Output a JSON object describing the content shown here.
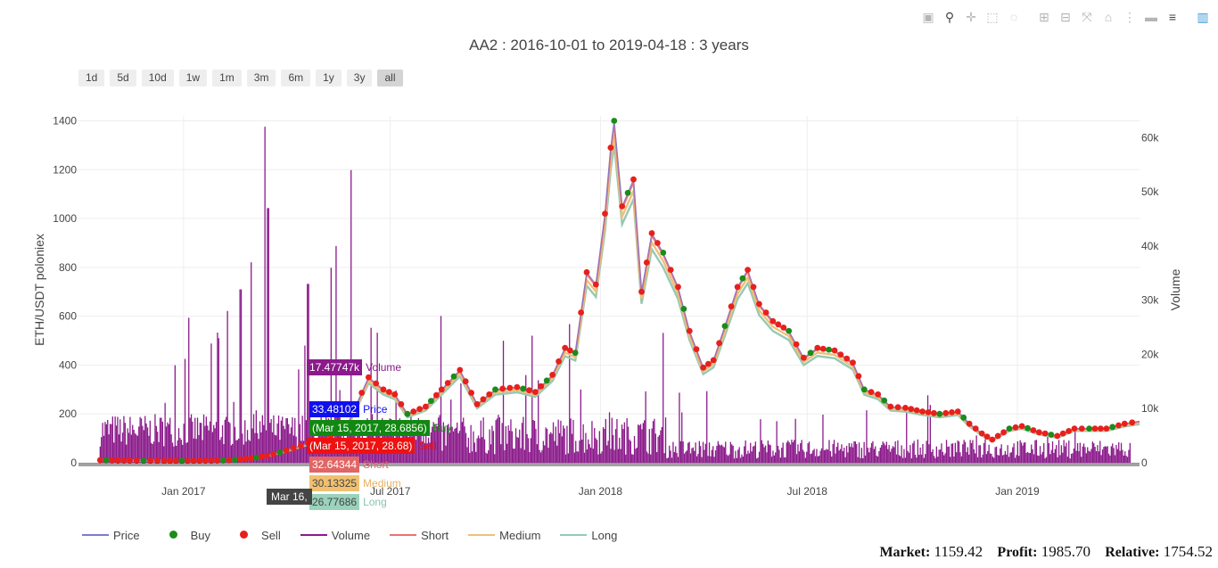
{
  "modebar": {
    "icons": [
      "camera-icon",
      "zoom-icon",
      "pan-icon",
      "box-select-icon",
      "lasso-icon",
      "zoom-in-icon",
      "zoom-out-icon",
      "autoscale-icon",
      "reset-axes-icon",
      "spike-lines-icon",
      "hover-closest-icon",
      "hover-compare-icon",
      "plotly-logo-icon"
    ]
  },
  "range_selector": [
    "1d",
    "5d",
    "10d",
    "1w",
    "1m",
    "3m",
    "6m",
    "1y",
    "3y",
    "all"
  ],
  "range_selector_active": "all",
  "legend": [
    {
      "name": "Price",
      "symbol": "line",
      "color": "#7b7bd1"
    },
    {
      "name": "Buy",
      "symbol": "dot",
      "color": "#1a8c1a"
    },
    {
      "name": "Sell",
      "symbol": "dot",
      "color": "#e8201c"
    },
    {
      "name": "Volume",
      "symbol": "line",
      "color": "#8b1a8b"
    },
    {
      "name": "Short",
      "symbol": "line",
      "color": "#e87474"
    },
    {
      "name": "Medium",
      "symbol": "line",
      "color": "#eec07a"
    },
    {
      "name": "Long",
      "symbol": "line",
      "color": "#96c9b3"
    }
  ],
  "stats": {
    "market_label": "Market:",
    "market_value": "1159.42",
    "profit_label": "Profit:",
    "profit_value": "1985.70",
    "relative_label": "Relative:",
    "relative_value": "1754.52"
  },
  "tooltips": {
    "volume": {
      "value": "17.47747k",
      "name": "Volume",
      "color": "#8b1a8b"
    },
    "price": {
      "value": "33.48102",
      "name": "Price",
      "color": "#0000ee"
    },
    "buy": {
      "value": "(Mar 15, 2017, 28.6856)",
      "name": "Buy",
      "color": "#118811"
    },
    "sell": {
      "value": "(Mar 15, 2017, 28.68)",
      "name": "Sell",
      "color": "#ee1111"
    },
    "short": {
      "value": "32.64344",
      "name": "Short",
      "color": "#e46a6a"
    },
    "medium": {
      "value": "30.13325",
      "name": "Medium",
      "color": "#f0c070"
    },
    "long": {
      "value": "26.77686",
      "name": "Long",
      "color": "#9ad2bb"
    },
    "xhover": "Mar 16,"
  },
  "chart_data": {
    "type": "line",
    "title": "AA2 : 2016-10-01 to 2019-04-18 : 3 years",
    "ylabel": "ETH/USDT poloniex",
    "y2label": "Volume",
    "xrange": [
      "2016-10-01",
      "2019-04-18"
    ],
    "ylim": [
      0,
      1420
    ],
    "y2lim": [
      0,
      64000
    ],
    "xticks": [
      {
        "date": "2017-01-01",
        "label": "Jan 2017"
      },
      {
        "date": "2017-07-01",
        "label": "Jul 2017"
      },
      {
        "date": "2018-01-01",
        "label": "Jan 2018"
      },
      {
        "date": "2018-07-01",
        "label": "Jul 2018"
      },
      {
        "date": "2019-01-01",
        "label": "Jan 2019"
      }
    ],
    "yticks": [
      0,
      200,
      400,
      600,
      800,
      1000,
      1200,
      1400
    ],
    "y2ticks": [
      {
        "v": 0,
        "label": "0"
      },
      {
        "v": 10000,
        "label": "10k"
      },
      {
        "v": 20000,
        "label": "20k"
      },
      {
        "v": 30000,
        "label": "30k"
      },
      {
        "v": 40000,
        "label": "40k"
      },
      {
        "v": 50000,
        "label": "50k"
      },
      {
        "v": 60000,
        "label": "60k"
      }
    ],
    "grid": true,
    "legend_position": "bottom-left",
    "price": {
      "x": [
        "2016-10-20",
        "2016-11-15",
        "2016-12-15",
        "2017-01-15",
        "2017-02-15",
        "2017-03-01",
        "2017-03-15",
        "2017-04-01",
        "2017-04-20",
        "2017-05-05",
        "2017-05-25",
        "2017-06-12",
        "2017-06-25",
        "2017-07-05",
        "2017-07-16",
        "2017-08-01",
        "2017-08-15",
        "2017-08-31",
        "2017-09-15",
        "2017-10-01",
        "2017-10-20",
        "2017-11-05",
        "2017-11-20",
        "2017-12-01",
        "2017-12-10",
        "2017-12-20",
        "2017-12-28",
        "2018-01-05",
        "2018-01-10",
        "2018-01-13",
        "2018-01-20",
        "2018-01-30",
        "2018-02-06",
        "2018-02-15",
        "2018-02-25",
        "2018-03-10",
        "2018-03-20",
        "2018-04-01",
        "2018-04-10",
        "2018-04-20",
        "2018-05-01",
        "2018-05-10",
        "2018-05-20",
        "2018-06-01",
        "2018-06-15",
        "2018-06-28",
        "2018-07-10",
        "2018-07-25",
        "2018-08-10",
        "2018-08-20",
        "2018-09-01",
        "2018-09-12",
        "2018-09-25",
        "2018-10-10",
        "2018-10-25",
        "2018-11-10",
        "2018-11-20",
        "2018-12-01",
        "2018-12-10",
        "2018-12-25",
        "2019-01-05",
        "2019-01-20",
        "2019-02-05",
        "2019-02-20",
        "2019-03-05",
        "2019-03-20",
        "2019-04-05",
        "2019-04-18"
      ],
      "y": [
        11,
        10,
        8,
        9,
        12,
        18,
        29,
        50,
        80,
        95,
        160,
        350,
        300,
        280,
        200,
        230,
        300,
        380,
        240,
        300,
        310,
        290,
        360,
        470,
        450,
        780,
        730,
        1020,
        1290,
        1400,
        1050,
        1160,
        700,
        940,
        860,
        720,
        540,
        390,
        420,
        560,
        720,
        790,
        650,
        580,
        540,
        430,
        470,
        460,
        410,
        300,
        280,
        230,
        225,
        210,
        200,
        210,
        160,
        120,
        95,
        140,
        150,
        125,
        110,
        140,
        140,
        140,
        160,
        170
      ]
    },
    "volume_note": "dense volume bars drawn per period; spikes near 2017-03 reach ~62000"
  }
}
